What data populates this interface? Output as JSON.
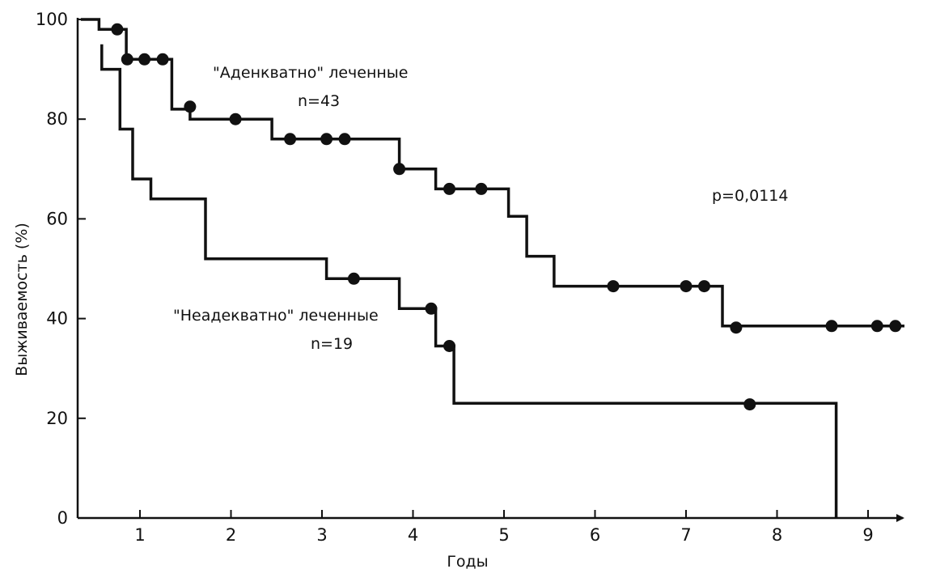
{
  "chart_data": {
    "type": "line",
    "title": "",
    "xlabel": "Годы",
    "ylabel": "Выживаемость (%)",
    "xlim": [
      0.35,
      9.4
    ],
    "ylim": [
      0,
      100
    ],
    "x_ticks": [
      1,
      2,
      3,
      4,
      5,
      6,
      7,
      8,
      9
    ],
    "x_tick_labels": [
      "1",
      "2",
      "3",
      "4",
      "5",
      "6",
      "7",
      "8",
      "9"
    ],
    "y_ticks": [
      0,
      20,
      40,
      60,
      80,
      100
    ],
    "y_tick_labels": [
      "0",
      "20",
      "40",
      "60",
      "80",
      "100"
    ],
    "series": [
      {
        "name": "\"Аденкватно\" леченные",
        "step_points": [
          [
            0.35,
            100
          ],
          [
            0.55,
            100
          ],
          [
            0.55,
            98
          ],
          [
            0.85,
            98
          ],
          [
            0.85,
            92
          ],
          [
            1.35,
            92
          ],
          [
            1.35,
            82
          ],
          [
            1.55,
            82
          ],
          [
            1.55,
            80
          ],
          [
            2.45,
            80
          ],
          [
            2.45,
            76
          ],
          [
            3.85,
            76
          ],
          [
            3.85,
            70
          ],
          [
            4.25,
            70
          ],
          [
            4.25,
            66
          ],
          [
            5.05,
            66
          ],
          [
            5.05,
            60.5
          ],
          [
            5.25,
            60.5
          ],
          [
            5.25,
            52.5
          ],
          [
            5.55,
            52.5
          ],
          [
            5.55,
            46.5
          ],
          [
            7.4,
            46.5
          ],
          [
            7.4,
            38.5
          ],
          [
            9.4,
            38.5
          ]
        ],
        "censored": [
          [
            0.75,
            98
          ],
          [
            0.86,
            92
          ],
          [
            1.05,
            92
          ],
          [
            1.25,
            92
          ],
          [
            1.55,
            82.5
          ],
          [
            2.05,
            80
          ],
          [
            2.65,
            76
          ],
          [
            3.05,
            76
          ],
          [
            3.25,
            76
          ],
          [
            3.85,
            70
          ],
          [
            4.4,
            66
          ],
          [
            4.75,
            66
          ],
          [
            6.2,
            46.5
          ],
          [
            7.0,
            46.5
          ],
          [
            7.2,
            46.5
          ],
          [
            7.55,
            38.2
          ],
          [
            8.6,
            38.5
          ],
          [
            9.1,
            38.5
          ],
          [
            9.3,
            38.5
          ]
        ]
      },
      {
        "name": "\"Неадекватно\" леченные",
        "step_points": [
          [
            0.58,
            95
          ],
          [
            0.58,
            90
          ],
          [
            0.78,
            90
          ],
          [
            0.78,
            78
          ],
          [
            0.92,
            78
          ],
          [
            0.92,
            68
          ],
          [
            1.12,
            68
          ],
          [
            1.12,
            64
          ],
          [
            1.72,
            64
          ],
          [
            1.72,
            52
          ],
          [
            3.05,
            52
          ],
          [
            3.05,
            48
          ],
          [
            3.85,
            48
          ],
          [
            3.85,
            42
          ],
          [
            4.25,
            42
          ],
          [
            4.25,
            34.5
          ],
          [
            4.45,
            34.5
          ],
          [
            4.45,
            23
          ],
          [
            8.65,
            23
          ],
          [
            8.65,
            0
          ]
        ],
        "censored": [
          [
            3.35,
            48
          ],
          [
            4.2,
            42
          ],
          [
            4.4,
            34.5
          ],
          [
            7.7,
            22.8
          ]
        ]
      }
    ],
    "annotations": [
      {
        "id": "adequate_title",
        "text": "\"Аденкватно\" леченные"
      },
      {
        "id": "adequate_n",
        "text": "n=43"
      },
      {
        "id": "inadequate_title",
        "text": "\"Неадекватно\" леченные"
      },
      {
        "id": "inadequate_n",
        "text": "n=19"
      },
      {
        "id": "p_value",
        "text": "p=0,0114"
      }
    ],
    "grid": false,
    "legend": "none"
  }
}
